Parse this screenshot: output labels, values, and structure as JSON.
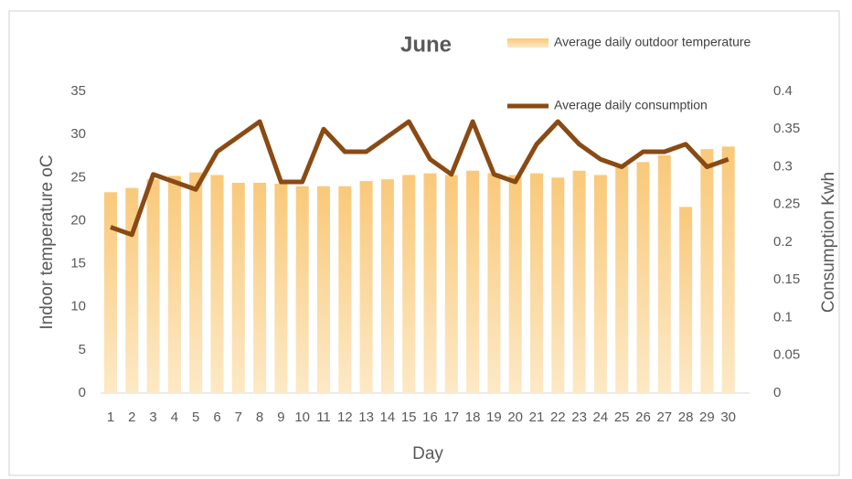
{
  "chart_data": {
    "type": "bar_line",
    "title": "June",
    "x_label": "Day",
    "y_label": "Indoor temperature oC",
    "y2_label": "Consumption Kwh",
    "categories": [
      "1",
      "2",
      "3",
      "4",
      "5",
      "6",
      "7",
      "8",
      "9",
      "10",
      "11",
      "12",
      "13",
      "14",
      "15",
      "16",
      "17",
      "18",
      "19",
      "20",
      "21",
      "22",
      "23",
      "24",
      "25",
      "26",
      "27",
      "28",
      "29",
      "30"
    ],
    "series": [
      {
        "name": "Average daily outdoor temperature",
        "color": "#f9c97a",
        "kind": "bar",
        "values": [
          23.3,
          23.8,
          24.8,
          25.2,
          25.6,
          25.3,
          24.4,
          24.4,
          24.3,
          24.0,
          24.0,
          24.0,
          24.6,
          24.8,
          25.3,
          25.5,
          25.3,
          25.8,
          25.5,
          25.3,
          25.5,
          25.0,
          25.8,
          25.3,
          26.3,
          26.8,
          27.6,
          21.6,
          28.3,
          28.6
        ]
      },
      {
        "name": "Average daily consumption",
        "color": "#8a4a14",
        "kind": "line",
        "axis": "y2",
        "values": [
          0.22,
          0.21,
          0.29,
          0.28,
          0.27,
          0.32,
          0.34,
          0.36,
          0.28,
          0.28,
          0.35,
          0.32,
          0.32,
          0.34,
          0.36,
          0.31,
          0.29,
          0.36,
          0.29,
          0.28,
          0.33,
          0.36,
          0.33,
          0.31,
          0.3,
          0.32,
          0.32,
          0.33,
          0.3,
          0.31
        ]
      }
    ],
    "ylim": [
      0,
      35
    ],
    "yticks": [
      0,
      5,
      10,
      15,
      20,
      25,
      30,
      35
    ],
    "y2lim": [
      0,
      0.4
    ],
    "y2ticks": [
      0,
      0.05,
      0.1,
      0.15,
      0.2,
      0.25,
      0.3,
      0.35,
      0.4
    ],
    "legend": "upper right",
    "grid": false
  }
}
